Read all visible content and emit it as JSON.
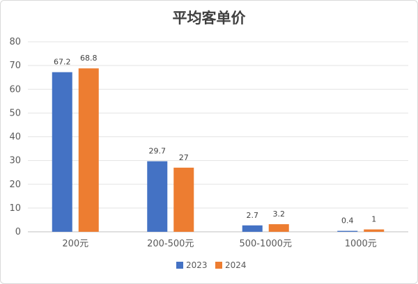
{
  "chart_data": {
    "type": "bar",
    "title": "平均客单价",
    "xlabel": "",
    "ylabel": "",
    "categories": [
      "200元",
      "200-500元",
      "500-1000元",
      "1000元"
    ],
    "series": [
      {
        "name": "2023",
        "values": [
          67.2,
          29.7,
          2.7,
          0.4
        ],
        "color": "#4472C4"
      },
      {
        "name": "2024",
        "values": [
          68.8,
          27,
          3.2,
          1
        ],
        "color": "#ED7D31"
      }
    ],
    "ylim": [
      0,
      80
    ],
    "yticks": [
      0,
      10,
      20,
      30,
      40,
      50,
      60,
      70,
      80
    ],
    "grid": true,
    "legend": "bottom",
    "data_labels": true
  }
}
